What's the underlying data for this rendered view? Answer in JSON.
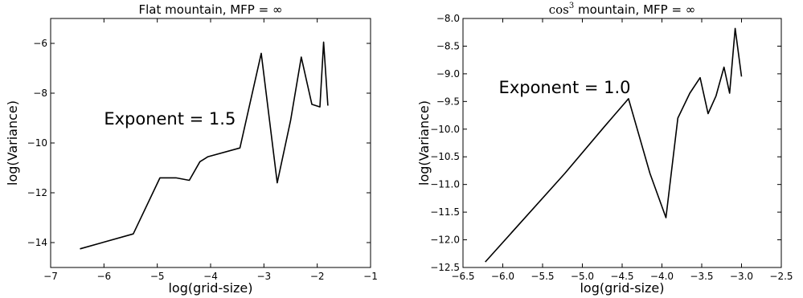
{
  "chart_data": [
    {
      "type": "line",
      "title": "Flat mountain, MFP = ∞",
      "xlabel": "log(grid-size)",
      "ylabel": "log(Variance)",
      "xlim": [
        -7,
        -1
      ],
      "ylim": [
        -15,
        -5
      ],
      "xticks": [
        -7,
        -6,
        -5,
        -4,
        -3,
        -2,
        -1
      ],
      "xtick_labels": [
        "−7",
        "−6",
        "−5",
        "−4",
        "−3",
        "−2",
        "−1"
      ],
      "yticks": [
        -14,
        -12,
        -10,
        -8,
        -6
      ],
      "ytick_labels": [
        "−14",
        "−12",
        "−10",
        "−8",
        "−6"
      ],
      "annotation": {
        "text": "Exponent = 1.5",
        "x": -6.0,
        "y": -9.25
      },
      "series": [
        {
          "color": "#000000",
          "x": [
            -6.45,
            -5.45,
            -4.95,
            -4.65,
            -4.4,
            -4.2,
            -4.05,
            -3.45,
            -3.05,
            -2.75,
            -2.5,
            -2.3,
            -2.1,
            -1.95,
            -1.88,
            -1.8
          ],
          "y": [
            -14.25,
            -13.65,
            -11.4,
            -11.4,
            -11.5,
            -10.75,
            -10.55,
            -10.2,
            -6.4,
            -11.6,
            -9.1,
            -6.55,
            -8.45,
            -8.55,
            -5.95,
            -8.5
          ]
        }
      ]
    },
    {
      "type": "line",
      "title_prefix": "cos",
      "title_sup": "3",
      "title_suffix": " mountain, MFP = ∞",
      "xlabel": "log(grid-size)",
      "ylabel": "log(Variance)",
      "xlim": [
        -6.5,
        -2.5
      ],
      "ylim": [
        -12.5,
        -8.0
      ],
      "xticks": [
        -6.5,
        -6.0,
        -5.5,
        -5.0,
        -4.5,
        -4.0,
        -3.5,
        -3.0,
        -2.5
      ],
      "xtick_labels": [
        "−6.5",
        "−6.0",
        "−5.5",
        "−5.0",
        "−4.5",
        "−4.0",
        "−3.5",
        "−3.0",
        "−2.5"
      ],
      "yticks": [
        -12.5,
        -12.0,
        -11.5,
        -11.0,
        -10.5,
        -10.0,
        -9.5,
        -9.0,
        -8.5,
        -8.0
      ],
      "ytick_labels": [
        "−12.5",
        "−12.0",
        "−11.5",
        "−11.0",
        "−10.5",
        "−10.0",
        "−9.5",
        "−9.0",
        "−8.5",
        "−8.0"
      ],
      "annotation": {
        "text": "Exponent = 1.0",
        "x": -6.05,
        "y": -9.35
      },
      "series": [
        {
          "color": "#000000",
          "x": [
            -6.22,
            -5.22,
            -4.72,
            -4.42,
            -4.15,
            -3.95,
            -3.8,
            -3.65,
            -3.52,
            -3.42,
            -3.32,
            -3.22,
            -3.15,
            -3.08,
            -3.0
          ],
          "y": [
            -12.4,
            -10.8,
            -9.95,
            -9.45,
            -10.8,
            -11.6,
            -9.8,
            -9.35,
            -9.07,
            -9.72,
            -9.4,
            -8.88,
            -9.35,
            -8.18,
            -9.05
          ]
        }
      ]
    }
  ]
}
